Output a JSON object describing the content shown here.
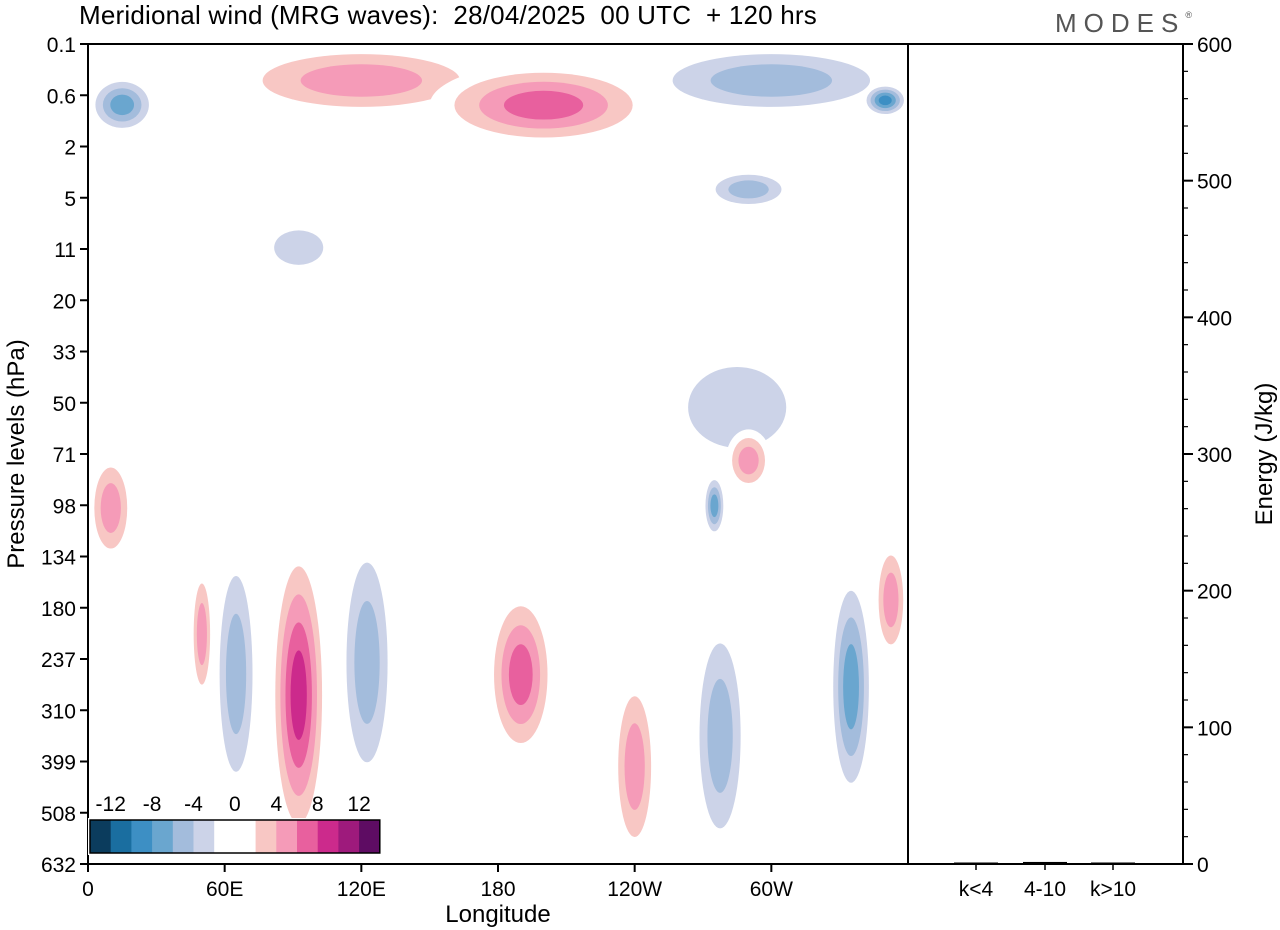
{
  "title": "Meridional wind (MRG waves):  28/04/2025  00 UTC  + 120 hrs",
  "logo": "MODES",
  "chart_data": [
    {
      "type": "heatmap",
      "title": "Meridional wind (MRG waves):  28/04/2025  00 UTC  + 120 hrs",
      "xlabel": "Longitude",
      "ylabel": "Pressure levels (hPa)",
      "x_ticks": [
        "0",
        "60E",
        "120E",
        "180",
        "120W",
        "60W"
      ],
      "x_tick_degrees": [
        0,
        60,
        120,
        180,
        240,
        300
      ],
      "xlim": [
        0,
        360
      ],
      "y_ticks": [
        "0.1",
        "0.6",
        "2",
        "5",
        "11",
        "20",
        "33",
        "50",
        "71",
        "98",
        "134",
        "180",
        "237",
        "310",
        "399",
        "508",
        "632"
      ],
      "y_scale": "pressure levels",
      "colorbar": {
        "labels": [
          "-12",
          "-8",
          "-4",
          "0",
          "4",
          "8",
          "12"
        ],
        "levels": [
          -14,
          -12,
          -10,
          -8,
          -6,
          -4,
          -2,
          0,
          2,
          4,
          6,
          8,
          10,
          12,
          14
        ],
        "colors": [
          "#0b3c5d",
          "#1a6ea0",
          "#3d8fc4",
          "#6aa6cf",
          "#a3bcdc",
          "#ccd3e8",
          "#ffffff",
          "#ffffff",
          "#f8c7c4",
          "#f59bb8",
          "#e8609e",
          "#cc2a8c",
          "#9e1a7c",
          "#5e0c63"
        ]
      },
      "features": [
        {
          "region": "upper level",
          "lon": [
            0,
            30
          ],
          "plev": [
            0.3,
            1.5
          ],
          "value": -8
        },
        {
          "region": "upper level",
          "lon": [
            60,
            180
          ],
          "plev": [
            0.1,
            1
          ],
          "value": 6
        },
        {
          "region": "upper level",
          "lon": [
            150,
            250
          ],
          "plev": [
            0.2,
            2
          ],
          "value": 8
        },
        {
          "region": "upper level",
          "lon": [
            240,
            360
          ],
          "plev": [
            0.1,
            1
          ],
          "value": -6
        },
        {
          "region": "upper level",
          "lon": [
            340,
            360
          ],
          "plev": [
            0.4,
            1
          ],
          "value": -10
        },
        {
          "region": "upper level",
          "lon": [
            270,
            310
          ],
          "plev": [
            3,
            6
          ],
          "value": -6
        },
        {
          "region": "upper level",
          "lon": [
            75,
            110
          ],
          "plev": [
            7,
            15
          ],
          "value": -4
        },
        {
          "region": "mid level",
          "lon": [
            250,
            320
          ],
          "plev": [
            30,
            80
          ],
          "value": -4
        },
        {
          "region": "mid level",
          "lon": [
            280,
            300
          ],
          "plev": [
            60,
            90
          ],
          "value": 6
        },
        {
          "region": "mid level",
          "lon": [
            270,
            280
          ],
          "plev": [
            80,
            120
          ],
          "value": -8
        },
        {
          "region": "mid level",
          "lon": [
            0,
            20
          ],
          "plev": [
            70,
            140
          ],
          "value": 6
        },
        {
          "region": "troposphere",
          "lon": [
            45,
            55
          ],
          "plev": [
            140,
            300
          ],
          "value": 6
        },
        {
          "region": "troposphere",
          "lon": [
            55,
            75
          ],
          "plev": [
            120,
            500
          ],
          "value": -6
        },
        {
          "region": "troposphere",
          "lon": [
            80,
            105
          ],
          "plev": [
            120,
            600
          ],
          "value": 10
        },
        {
          "region": "troposphere",
          "lon": [
            110,
            135
          ],
          "plev": [
            110,
            480
          ],
          "value": -6
        },
        {
          "region": "troposphere",
          "lon": [
            175,
            205
          ],
          "plev": [
            160,
            400
          ],
          "value": 8
        },
        {
          "region": "troposphere",
          "lon": [
            230,
            250
          ],
          "plev": [
            250,
            632
          ],
          "value": 6
        },
        {
          "region": "troposphere",
          "lon": [
            265,
            290
          ],
          "plev": [
            180,
            632
          ],
          "value": -6
        },
        {
          "region": "troposphere",
          "lon": [
            325,
            345
          ],
          "plev": [
            140,
            500
          ],
          "value": -8
        },
        {
          "region": "troposphere",
          "lon": [
            345,
            360
          ],
          "plev": [
            120,
            240
          ],
          "value": 6
        }
      ]
    },
    {
      "type": "bar",
      "categories": [
        "k<4",
        "4-10",
        "k>10"
      ],
      "values": [
        0.5,
        1.5,
        0.3
      ],
      "ylabel": "Energy (J/kg)",
      "ylim": [
        0,
        600
      ],
      "y_ticks": [
        0,
        100,
        200,
        300,
        400,
        500,
        600
      ],
      "bar_color": "#000000"
    }
  ]
}
